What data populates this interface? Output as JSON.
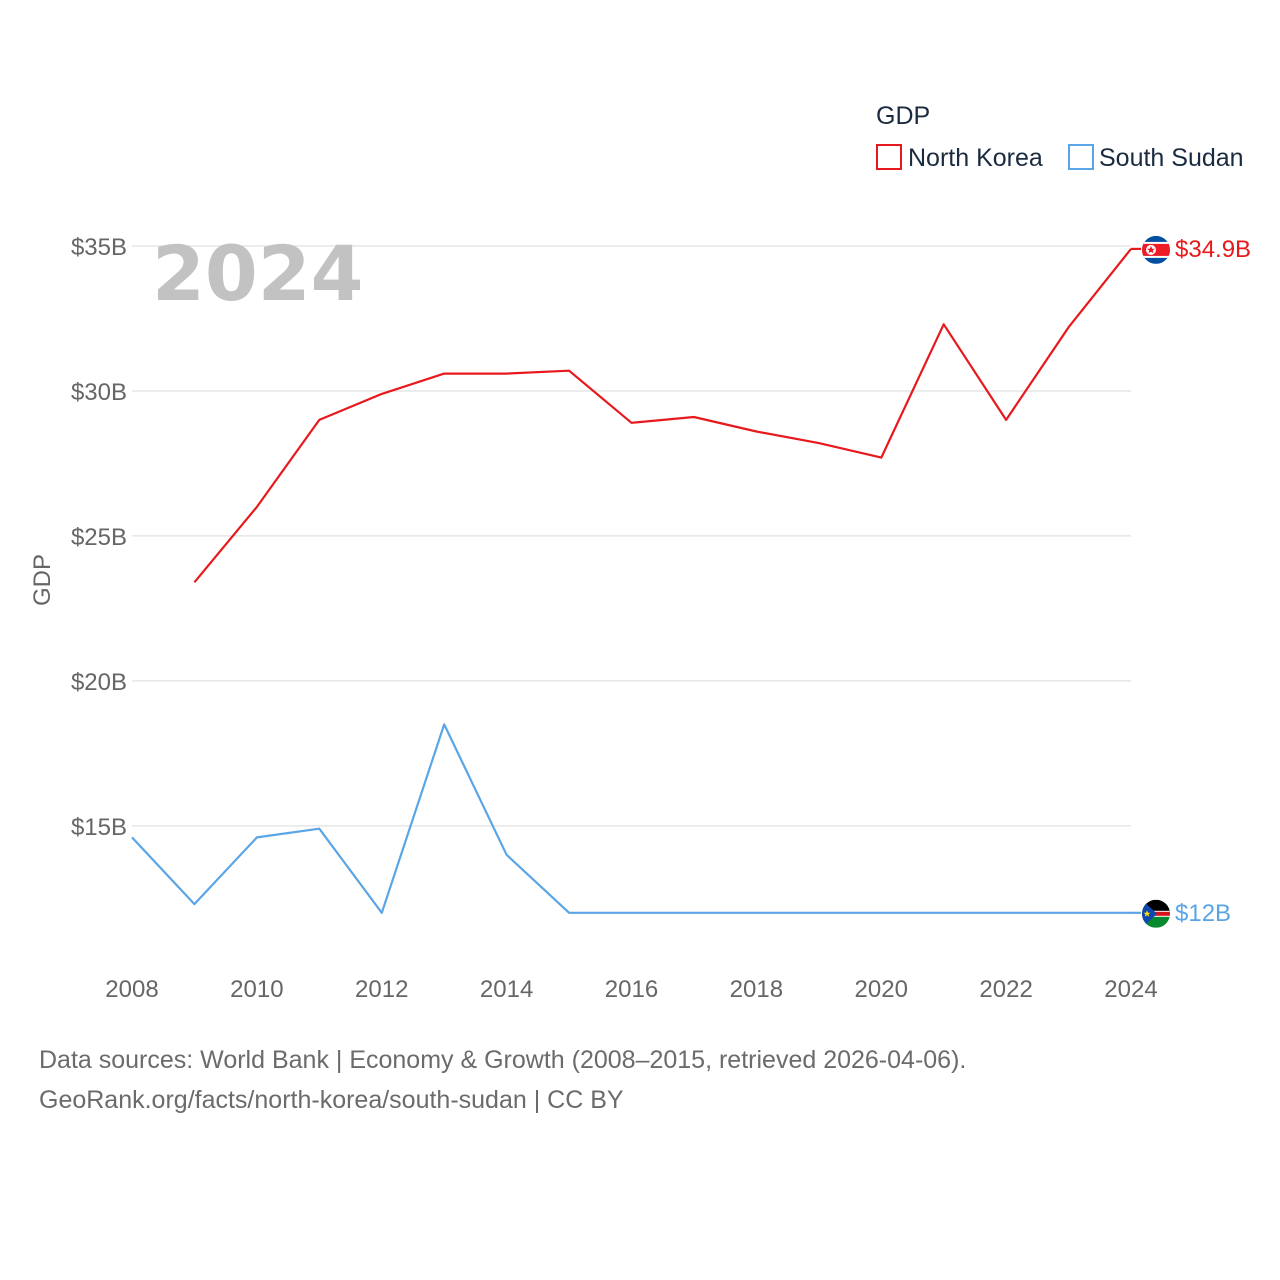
{
  "chart_data": {
    "type": "line",
    "year_display": "2024",
    "ylabel": "GDP",
    "xlabel": "",
    "xlim": [
      2008,
      2024
    ],
    "ylim": [
      12.2,
      35.0
    ],
    "x_ticks": [
      2008,
      2010,
      2012,
      2014,
      2016,
      2018,
      2020,
      2022,
      2024
    ],
    "y_ticks": [
      {
        "value": 15,
        "label": "$15B"
      },
      {
        "value": 20,
        "label": "$20B"
      },
      {
        "value": 25,
        "label": "$25B"
      },
      {
        "value": 30,
        "label": "$30B"
      },
      {
        "value": 35,
        "label": "$35B"
      }
    ],
    "legend": {
      "title": "GDP",
      "position": "top-right"
    },
    "series": [
      {
        "name": "North Korea",
        "color": "#e8191c",
        "end_label": "$34.9B",
        "flag": "north-korea-flag",
        "points": [
          [
            2009,
            23.4
          ],
          [
            2010,
            26.0
          ],
          [
            2011,
            29.0
          ],
          [
            2012,
            29.9
          ],
          [
            2013,
            30.6
          ],
          [
            2014,
            30.6
          ],
          [
            2015,
            30.7
          ],
          [
            2016,
            28.9
          ],
          [
            2017,
            29.1
          ],
          [
            2018,
            28.6
          ],
          [
            2019,
            28.2
          ],
          [
            2020,
            27.7
          ],
          [
            2021,
            32.3
          ],
          [
            2022,
            29.0
          ],
          [
            2023,
            32.2
          ],
          [
            2024,
            34.9
          ]
        ]
      },
      {
        "name": "South Sudan",
        "color": "#5aa5e6",
        "end_label": "$12B",
        "flag": "south-sudan-flag",
        "points": [
          [
            2008,
            14.6
          ],
          [
            2009,
            12.3
          ],
          [
            2010,
            14.6
          ],
          [
            2011,
            14.9
          ],
          [
            2012,
            12.0
          ],
          [
            2013,
            18.5
          ],
          [
            2014,
            14.0
          ],
          [
            2015,
            12.0
          ],
          [
            2016,
            12.0
          ],
          [
            2017,
            12.0
          ],
          [
            2018,
            12.0
          ],
          [
            2019,
            12.0
          ],
          [
            2020,
            12.0
          ],
          [
            2021,
            12.0
          ],
          [
            2022,
            12.0
          ],
          [
            2023,
            12.0
          ],
          [
            2024,
            12.0
          ]
        ]
      }
    ]
  },
  "source": {
    "line1": "Data sources: World Bank | Economy & Growth (2008–2015, retrieved 2026-04-06).",
    "line2": "GeoRank.org/facts/north-korea/south-sudan | CC BY"
  },
  "colors": {
    "grid": "#e6e6e6",
    "tick_text": "#666666",
    "watermark": "#c2c2c2"
  }
}
